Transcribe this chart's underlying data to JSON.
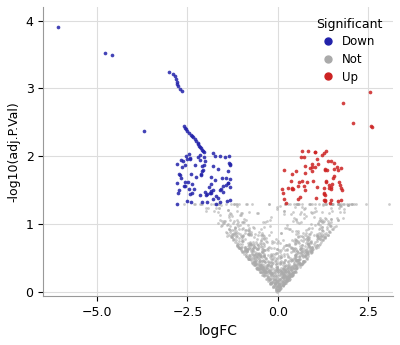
{
  "title": "",
  "xlabel": "logFC",
  "ylabel": "-log10(adj.P.Val)",
  "xlim": [
    -6.5,
    3.2
  ],
  "ylim": [
    -0.05,
    4.2
  ],
  "xticks": [
    -5.0,
    -2.5,
    0.0,
    2.5
  ],
  "yticks": [
    0,
    1,
    2,
    3,
    4
  ],
  "down_color": "#2222AA",
  "up_color": "#CC2222",
  "not_color": "#AAAAAA",
  "legend_title": "Significant",
  "background_color": "#FFFFFF",
  "grid_color": "#DDDDDD",
  "seed": 42,
  "n_not": 1200
}
